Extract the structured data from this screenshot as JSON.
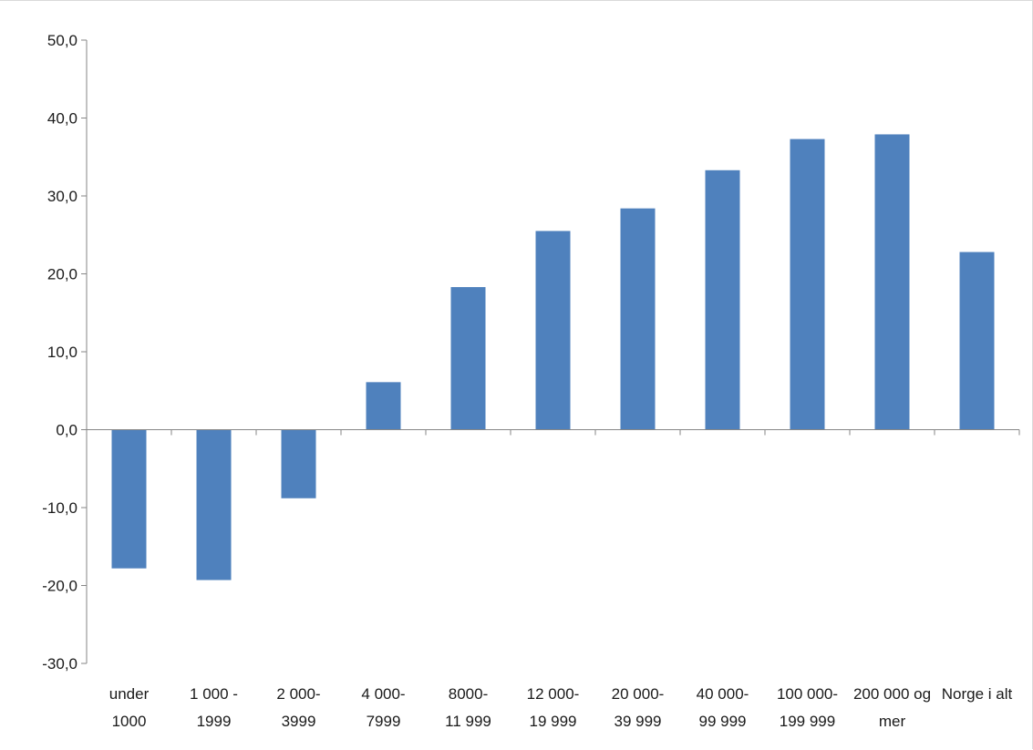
{
  "chart_data": {
    "type": "bar",
    "categories": [
      [
        "under",
        "1000"
      ],
      [
        "1 000 -",
        "1999"
      ],
      [
        "2 000-",
        "3999"
      ],
      [
        "4 000-",
        "7999"
      ],
      [
        "8000-",
        "11 999"
      ],
      [
        "12 000-",
        "19 999"
      ],
      [
        "20 000-",
        "39 999"
      ],
      [
        "40 000-",
        "99 999"
      ],
      [
        "100 000-",
        "199 999"
      ],
      [
        "200 000 og",
        "mer"
      ],
      [
        "Norge i alt"
      ]
    ],
    "values": [
      -17.8,
      -19.3,
      -8.8,
      6.1,
      18.3,
      25.5,
      28.4,
      33.3,
      37.3,
      37.9,
      22.8
    ],
    "yticks": [
      "50,0",
      "40,0",
      "30,0",
      "20,0",
      "10,0",
      "0,0",
      "-10,0",
      "-20,0",
      "-30,0"
    ],
    "ylim": [
      -30,
      50
    ],
    "grid": false,
    "bar_color": "#4f81bd",
    "axis_color": "#868686"
  }
}
